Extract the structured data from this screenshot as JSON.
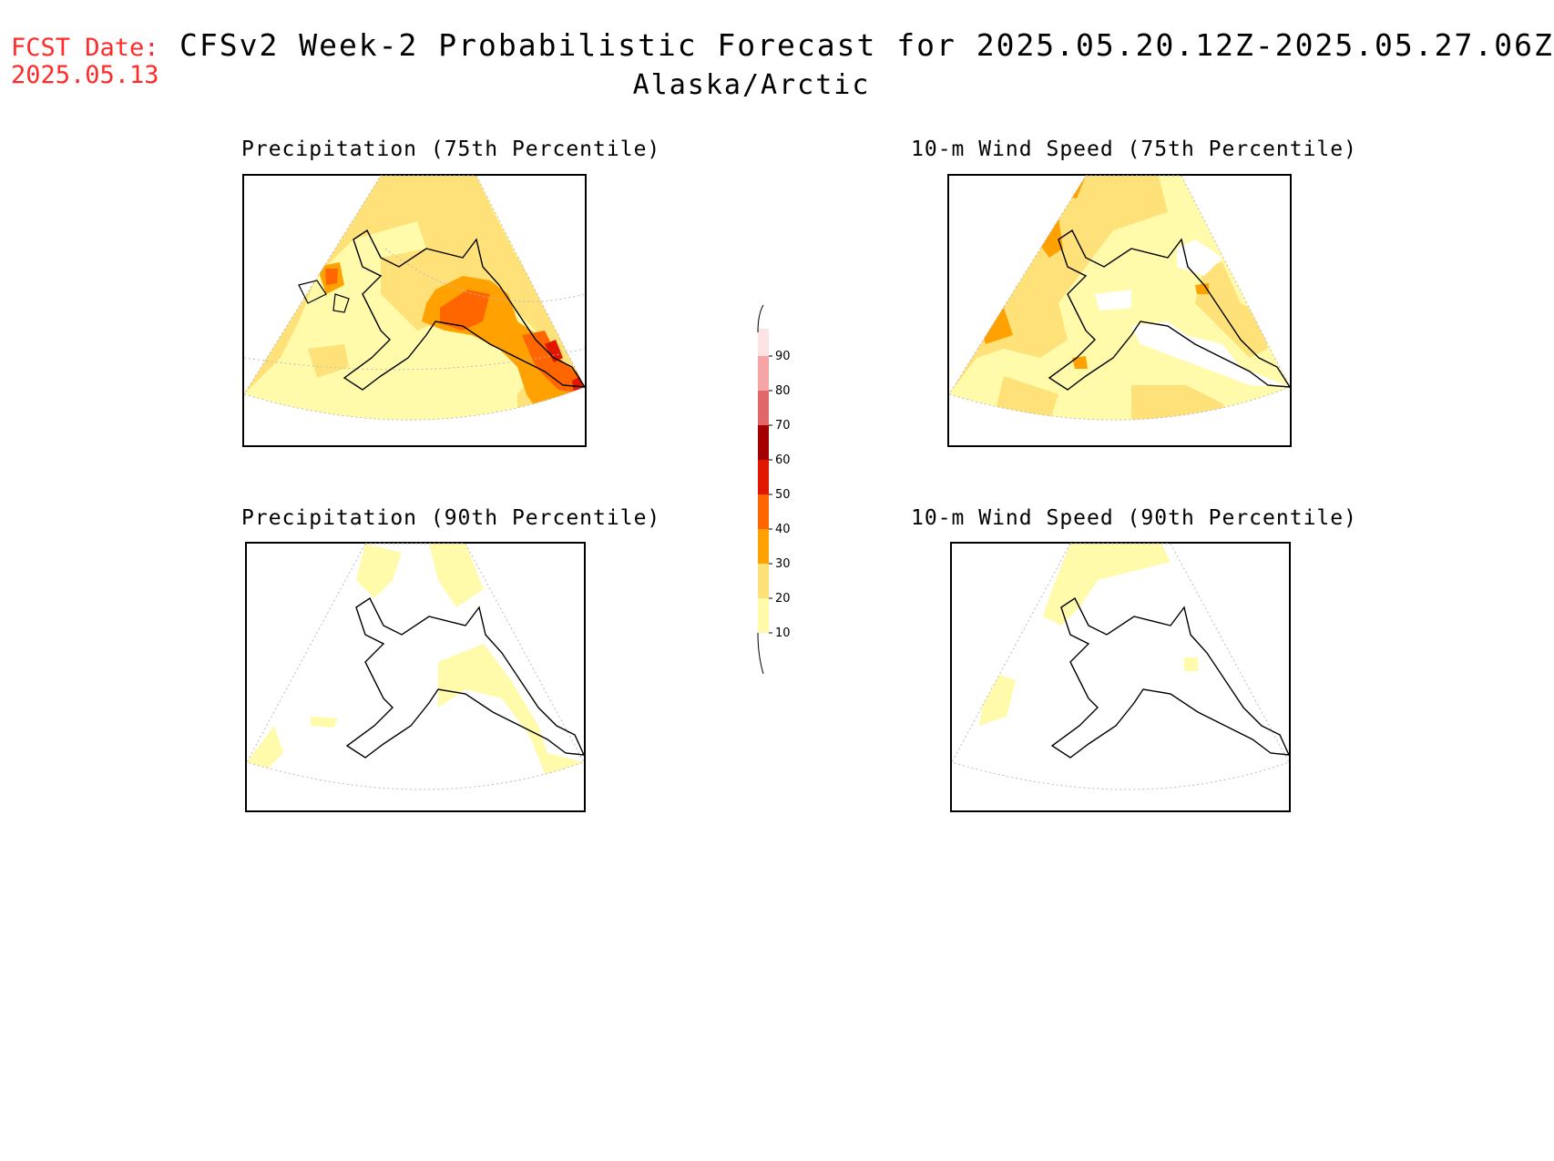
{
  "header": {
    "fcst_label": "FCST Date:",
    "fcst_date": "2025.05.13",
    "title": "CFSv2 Week-2 Probabilistic Forecast for 2025.05.20.12Z-2025.05.27.06Z",
    "subtitle": "Alaska/Arctic"
  },
  "panels": [
    {
      "id": "precip75",
      "title": "Precipitation (75th Percentile)"
    },
    {
      "id": "wind75",
      "title": "10-m Wind Speed (75th Percentile)"
    },
    {
      "id": "precip90",
      "title": "Precipitation (90th Percentile)"
    },
    {
      "id": "wind90",
      "title": "10-m Wind Speed (90th Percentile)"
    }
  ],
  "colorbar": {
    "levels": [
      "10",
      "20",
      "30",
      "40",
      "50",
      "60",
      "70",
      "80",
      "90"
    ],
    "colors": [
      "#fffbaa",
      "#ffe17a",
      "#ffa100",
      "#ff6600",
      "#e01600",
      "#a50000",
      "#e06868",
      "#f5a5a5",
      "#fde4e4"
    ]
  },
  "map_colors": {
    "pale": "#fffbaa",
    "light": "#ffe17a",
    "orange": "#ffa100",
    "dark_orange": "#ff6600",
    "red": "#e01600"
  }
}
